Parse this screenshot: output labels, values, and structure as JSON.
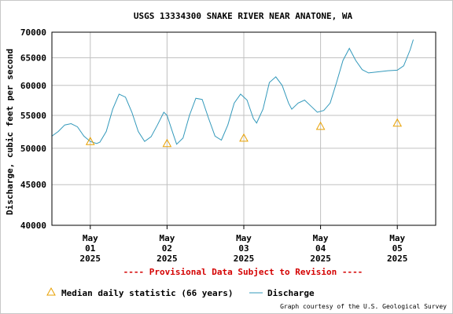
{
  "chart_data": {
    "type": "line",
    "title": "USGS 13334300 SNAKE RIVER NEAR ANATONE, WA",
    "ylabel": "Discharge, cubic feet per second",
    "xlabel": "",
    "ylim": [
      40000,
      70000
    ],
    "y_scale": "log",
    "y_ticks": [
      40000,
      45000,
      50000,
      55000,
      60000,
      65000,
      70000
    ],
    "y_tick_labels": [
      "40000",
      "45000",
      "50000",
      "55000",
      "60000",
      "65000",
      "70000"
    ],
    "xlim": [
      "2025-04-30T12:00",
      "2025-05-05T12:00"
    ],
    "x_ticks": [
      {
        "date": "2025-05-01",
        "label": [
          "May",
          "01",
          "2025"
        ]
      },
      {
        "date": "2025-05-02",
        "label": [
          "May",
          "02",
          "2025"
        ]
      },
      {
        "date": "2025-05-03",
        "label": [
          "May",
          "03",
          "2025"
        ]
      },
      {
        "date": "2025-05-04",
        "label": [
          "May",
          "04",
          "2025"
        ]
      },
      {
        "date": "2025-05-05",
        "label": [
          "May",
          "05",
          "2025"
        ]
      }
    ],
    "grid": true,
    "series": [
      {
        "name": "Discharge",
        "color": "#3399bb",
        "points": [
          [
            "2025-04-30T12:00",
            51800
          ],
          [
            "2025-04-30T14:00",
            52500
          ],
          [
            "2025-04-30T16:00",
            53500
          ],
          [
            "2025-04-30T18:00",
            53700
          ],
          [
            "2025-04-30T20:00",
            53200
          ],
          [
            "2025-04-30T22:00",
            51800
          ],
          [
            "2025-05-01T00:00",
            51000
          ],
          [
            "2025-05-01T02:00",
            50700
          ],
          [
            "2025-05-01T03:00",
            50900
          ],
          [
            "2025-05-01T05:00",
            52500
          ],
          [
            "2025-05-01T07:00",
            56000
          ],
          [
            "2025-05-01T09:00",
            58500
          ],
          [
            "2025-05-01T11:00",
            58000
          ],
          [
            "2025-05-01T13:00",
            55500
          ],
          [
            "2025-05-01T15:00",
            52500
          ],
          [
            "2025-05-01T17:00",
            51000
          ],
          [
            "2025-05-01T19:00",
            51700
          ],
          [
            "2025-05-01T21:00",
            53500
          ],
          [
            "2025-05-01T23:00",
            55500
          ],
          [
            "2025-05-02T00:00",
            55000
          ],
          [
            "2025-05-02T02:00",
            52000
          ],
          [
            "2025-05-02T03:00",
            50600
          ],
          [
            "2025-05-02T05:00",
            51500
          ],
          [
            "2025-05-02T07:00",
            55000
          ],
          [
            "2025-05-02T09:00",
            57800
          ],
          [
            "2025-05-02T11:00",
            57600
          ],
          [
            "2025-05-02T13:00",
            54500
          ],
          [
            "2025-05-02T15:00",
            51800
          ],
          [
            "2025-05-02T17:00",
            51200
          ],
          [
            "2025-05-02T19:00",
            53500
          ],
          [
            "2025-05-02T21:00",
            57000
          ],
          [
            "2025-05-02T23:00",
            58500
          ],
          [
            "2025-05-03T01:00",
            57500
          ],
          [
            "2025-05-03T03:00",
            54500
          ],
          [
            "2025-05-03T04:00",
            53800
          ],
          [
            "2025-05-03T06:00",
            56000
          ],
          [
            "2025-05-03T08:00",
            60500
          ],
          [
            "2025-05-03T10:00",
            61500
          ],
          [
            "2025-05-03T12:00",
            60000
          ],
          [
            "2025-05-03T14:00",
            57000
          ],
          [
            "2025-05-03T15:00",
            56000
          ],
          [
            "2025-05-03T17:00",
            57000
          ],
          [
            "2025-05-03T19:00",
            57500
          ],
          [
            "2025-05-03T21:00",
            56500
          ],
          [
            "2025-05-03T23:00",
            55500
          ],
          [
            "2025-05-04T01:00",
            55800
          ],
          [
            "2025-05-04T03:00",
            57000
          ],
          [
            "2025-05-04T05:00",
            60500
          ],
          [
            "2025-05-04T07:00",
            64500
          ],
          [
            "2025-05-04T09:00",
            66800
          ],
          [
            "2025-05-04T11:00",
            64500
          ],
          [
            "2025-05-04T13:00",
            62800
          ],
          [
            "2025-05-04T15:00",
            62200
          ],
          [
            "2025-05-04T18:00",
            62400
          ],
          [
            "2025-05-04T21:00",
            62600
          ],
          [
            "2025-05-05T00:00",
            62700
          ],
          [
            "2025-05-05T02:00",
            63500
          ],
          [
            "2025-05-05T04:00",
            66500
          ],
          [
            "2025-05-05T05:00",
            68500
          ]
        ]
      },
      {
        "name": "Median daily statistic (66 years)",
        "marker": "triangle",
        "color": "#e8a000",
        "points": [
          [
            "2025-05-01T00:00",
            51000
          ],
          [
            "2025-05-02T00:00",
            50700
          ],
          [
            "2025-05-03T00:00",
            51500
          ],
          [
            "2025-05-04T00:00",
            53300
          ],
          [
            "2025-05-05T00:00",
            53800
          ]
        ]
      }
    ],
    "legend": {
      "placement": "bottom",
      "median_label": "Median daily statistic (66 years)",
      "discharge_label": "Discharge"
    },
    "annotation": "---- Provisional Data Subject to Revision ----",
    "credit": "Graph courtesy of the U.S. Geological Survey"
  }
}
